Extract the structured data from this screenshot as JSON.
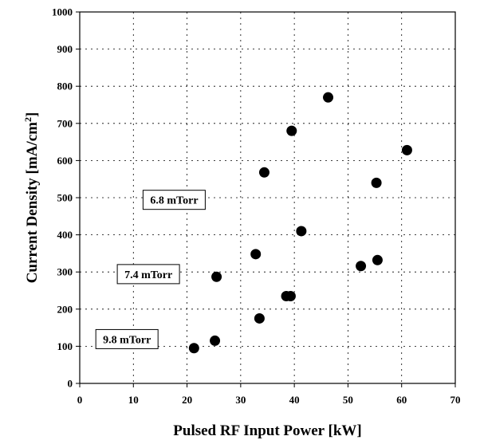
{
  "chart_data": {
    "type": "scatter",
    "xlabel": "Pulsed RF Input Power [kW]",
    "ylabel_parts": [
      "Current Density [mA/cm",
      "2",
      "]"
    ],
    "xlim": [
      0,
      70
    ],
    "ylim": [
      0,
      1000
    ],
    "x_ticks": [
      "0",
      "10",
      "20",
      "30",
      "40",
      "50",
      "60",
      "70"
    ],
    "y_ticks": [
      "0",
      "100",
      "200",
      "300",
      "400",
      "500",
      "600",
      "700",
      "800",
      "900",
      "1000"
    ],
    "grid": true,
    "grid_style": "dotted",
    "marker_color": "#000000",
    "series": [
      {
        "points": [
          {
            "x": 21.3,
            "y": 95
          },
          {
            "x": 25.2,
            "y": 115
          },
          {
            "x": 25.5,
            "y": 287
          },
          {
            "x": 32.8,
            "y": 348
          },
          {
            "x": 33.5,
            "y": 175
          },
          {
            "x": 34.4,
            "y": 568
          },
          {
            "x": 38.5,
            "y": 235
          },
          {
            "x": 39.3,
            "y": 235
          },
          {
            "x": 39.5,
            "y": 680
          },
          {
            "x": 41.3,
            "y": 410
          },
          {
            "x": 46.3,
            "y": 770
          },
          {
            "x": 52.4,
            "y": 316
          },
          {
            "x": 55.3,
            "y": 540
          },
          {
            "x": 55.5,
            "y": 332
          },
          {
            "x": 61.0,
            "y": 628
          }
        ]
      }
    ],
    "annotations": [
      {
        "text": "6.8 mTorr",
        "x": 11.8,
        "y": 520
      },
      {
        "text": "7.4 mTorr",
        "x": 7.0,
        "y": 320
      },
      {
        "text": "9.8 mTorr",
        "x": 3.0,
        "y": 145
      }
    ]
  }
}
